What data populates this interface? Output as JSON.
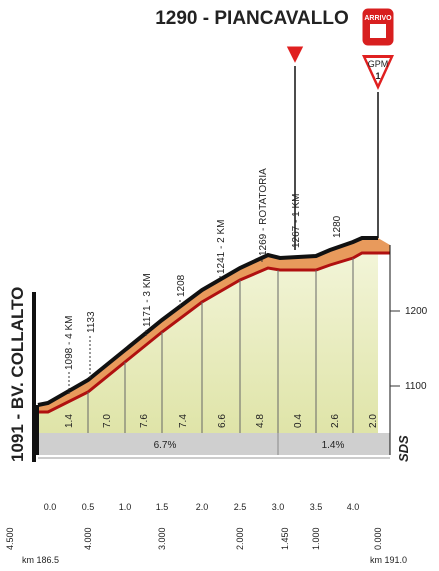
{
  "header": {
    "title": "1290 - PIANCAVALLO",
    "badge": "ARRIVO",
    "gpm": "GPM",
    "gpm_category": "1"
  },
  "start": {
    "label": "1091 - BV. COLLALTO",
    "km": "km 186.5"
  },
  "finish": {
    "km": "km 191.0"
  },
  "points": [
    "1098 - 4 KM",
    "1133",
    "1171 - 3 KM",
    "1208",
    "1241 - 2 KM",
    "1269 - ROTATORIA",
    "1267 - 1 KM",
    "1280"
  ],
  "altitude_ticks": [
    "1200",
    "1100"
  ],
  "gradients": [
    "1.4",
    "7.0",
    "7.6",
    "7.4",
    "6.6",
    "4.8",
    "0.4",
    "2.6",
    "2.0"
  ],
  "averages": [
    "6.7%",
    "1.4%"
  ],
  "logo": "SDS",
  "km_ticks": [
    "0.0",
    "0.5",
    "1.0",
    "1.5",
    "2.0",
    "2.5",
    "3.0",
    "3.5",
    "4.0"
  ],
  "km_to_go": [
    "4.500",
    "4.000",
    "3.000",
    "2.000",
    "1.450",
    "1.000",
    "0.000"
  ]
}
